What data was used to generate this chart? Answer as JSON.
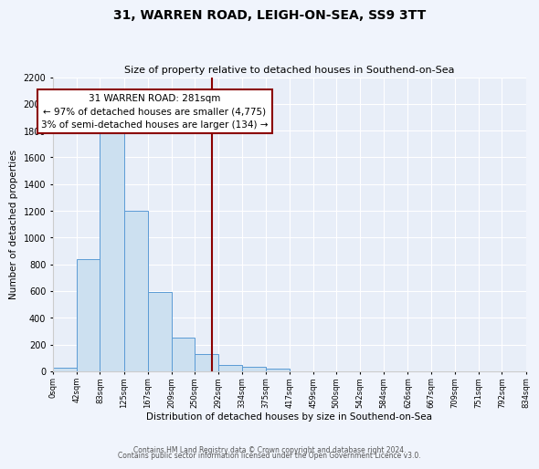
{
  "title": "31, WARREN ROAD, LEIGH-ON-SEA, SS9 3TT",
  "subtitle": "Size of property relative to detached houses in Southend-on-Sea",
  "xlabel": "Distribution of detached houses by size in Southend-on-Sea",
  "ylabel": "Number of detached properties",
  "bin_edges": [
    0,
    42,
    83,
    125,
    167,
    209,
    250,
    292,
    334,
    375,
    417,
    459,
    500,
    542,
    584,
    626,
    667,
    709,
    751,
    792,
    834
  ],
  "bin_labels": [
    "0sqm",
    "42sqm",
    "83sqm",
    "125sqm",
    "167sqm",
    "209sqm",
    "250sqm",
    "292sqm",
    "334sqm",
    "375sqm",
    "417sqm",
    "459sqm",
    "500sqm",
    "542sqm",
    "584sqm",
    "626sqm",
    "667sqm",
    "709sqm",
    "751sqm",
    "792sqm",
    "834sqm"
  ],
  "counts": [
    25,
    840,
    1800,
    1200,
    590,
    255,
    130,
    50,
    30,
    20,
    0,
    0,
    0,
    0,
    0,
    0,
    0,
    0,
    0,
    0
  ],
  "property_value": 281,
  "property_label": "31 WARREN ROAD: 281sqm",
  "annotation_line1": "← 97% of detached houses are smaller (4,775)",
  "annotation_line2": "3% of semi-detached houses are larger (134) →",
  "bar_facecolor": "#cce0f0",
  "bar_edgecolor": "#5b9bd5",
  "vline_color": "#8b0000",
  "annotation_box_edgecolor": "#8b0000",
  "plot_bg_color": "#e8eef8",
  "fig_bg_color": "#f0f4fc",
  "ylim": [
    0,
    2200
  ],
  "yticks": [
    0,
    200,
    400,
    600,
    800,
    1000,
    1200,
    1400,
    1600,
    1800,
    2000,
    2200
  ],
  "footer1": "Contains HM Land Registry data © Crown copyright and database right 2024.",
  "footer2": "Contains public sector information licensed under the Open Government Licence v3.0."
}
